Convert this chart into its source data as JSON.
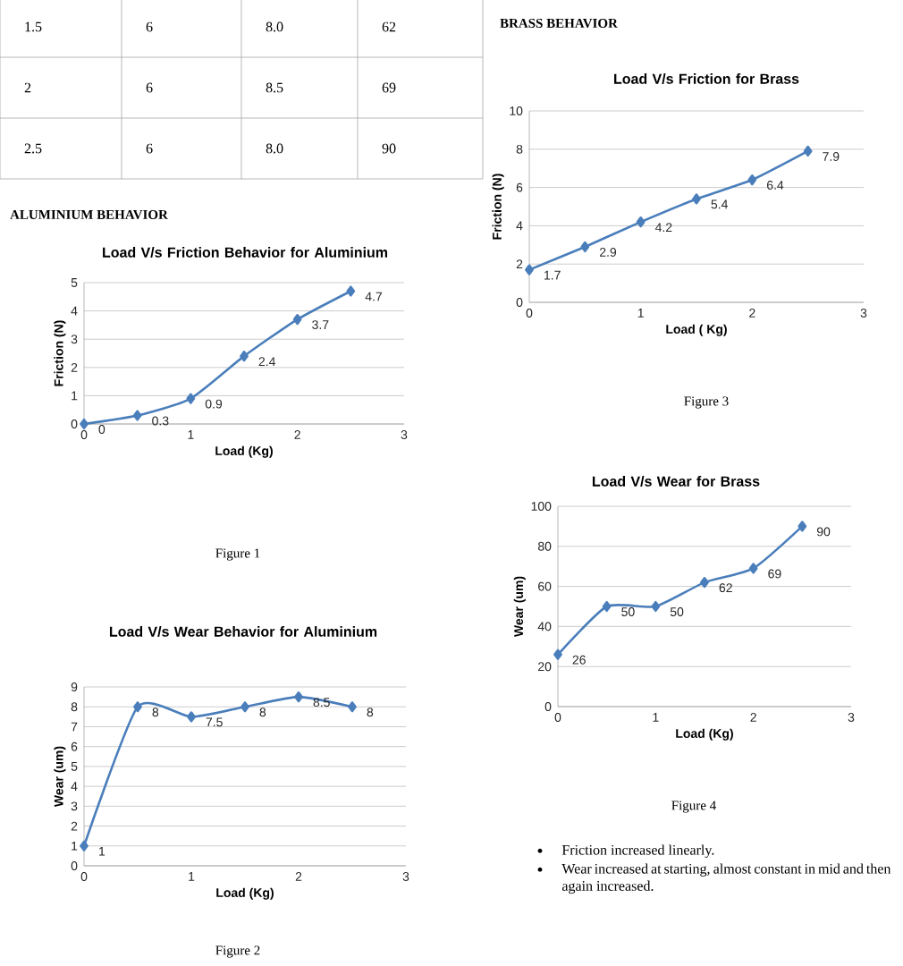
{
  "chart_data": [
    {
      "type": "other",
      "annotations": [
        "1.5",
        "6",
        "8.0",
        "62",
        "2",
        "6",
        "8.5",
        "69",
        "2.5",
        "6",
        "8.0",
        "90"
      ]
    },
    {
      "type": "other",
      "title": "ALUMINIUM BEHAVIOR"
    },
    {
      "type": "line",
      "title": "Load V/s Friction Behavior for Aluminium",
      "xlabel": "Load (Kg)",
      "ylabel": "Friction (N)",
      "x": [
        0,
        0.5,
        1,
        1.5,
        2,
        2.5
      ],
      "series": [
        {
          "color": "#4a7ebb",
          "values": [
            0,
            0.3,
            0.9,
            2.4,
            3.7,
            4.7
          ]
        }
      ],
      "xlim": [
        0,
        3
      ],
      "xticks": [
        0,
        1,
        2,
        3
      ],
      "ylim": [
        0,
        5
      ],
      "yticks": [
        0,
        1,
        2,
        3,
        4,
        5
      ],
      "grid": "y",
      "marker": "diamond",
      "data_labels": true,
      "annotations": [
        "Figure 1"
      ]
    },
    {
      "type": "line",
      "title": "Load V/s Wear Behavior for Aluminium",
      "xlabel": "Load (Kg)",
      "ylabel": "Wear (um)",
      "x": [
        0,
        0.5,
        1,
        1.5,
        2,
        2.5
      ],
      "series": [
        {
          "color": "#4a7ebb",
          "values": [
            1,
            8,
            7.5,
            8,
            8.5,
            8
          ]
        }
      ],
      "xlim": [
        0,
        3
      ],
      "xticks": [
        0,
        1,
        2,
        3
      ],
      "ylim": [
        0,
        9
      ],
      "yticks": [
        0,
        1,
        2,
        3,
        4,
        5,
        6,
        7,
        8,
        9
      ],
      "grid": "y",
      "marker": "diamond",
      "data_labels": true,
      "annotations": [
        "Figure 2"
      ]
    },
    {
      "type": "other",
      "title": "BRASS BEHAVIOR"
    },
    {
      "type": "line",
      "title": "Load V/s Friction for Brass",
      "xlabel": "Load ( Kg)",
      "ylabel": "Friction (N)",
      "x": [
        0,
        0.5,
        1,
        1.5,
        2,
        2.5
      ],
      "series": [
        {
          "color": "#4a7ebb",
          "values": [
            1.7,
            2.9,
            4.2,
            5.4,
            6.4,
            7.9
          ]
        }
      ],
      "xlim": [
        0,
        3
      ],
      "xticks": [
        0,
        1,
        2,
        3
      ],
      "ylim": [
        0,
        10
      ],
      "yticks": [
        0,
        2,
        4,
        6,
        8,
        10
      ],
      "grid": "y",
      "marker": "diamond",
      "data_labels": true,
      "annotations": [
        "Figure 3"
      ]
    },
    {
      "type": "line",
      "title": "Load V/s Wear for Brass",
      "xlabel": "Load (Kg)",
      "ylabel": "Wear (um)",
      "x": [
        0,
        0.5,
        1,
        1.5,
        2,
        2.5
      ],
      "series": [
        {
          "color": "#4a7ebb",
          "values": [
            26,
            50,
            50,
            62,
            69,
            90
          ]
        }
      ],
      "xlim": [
        0,
        3
      ],
      "xticks": [
        0,
        1,
        2,
        3
      ],
      "ylim": [
        0,
        100
      ],
      "yticks": [
        0,
        20,
        40,
        60,
        80,
        100
      ],
      "grid": "y",
      "marker": "diamond",
      "data_labels": true,
      "annotations": [
        "Figure 4"
      ]
    },
    {
      "type": "other",
      "annotations": [
        "Friction increased linearly.",
        "Wear increased at starting, almost constant in mid and then again increased."
      ]
    }
  ]
}
